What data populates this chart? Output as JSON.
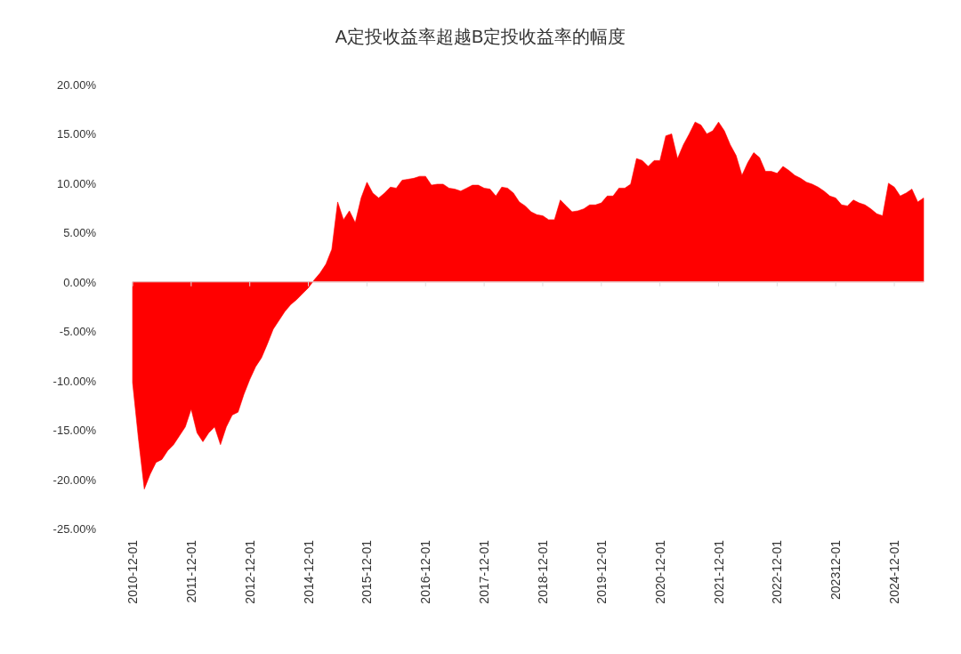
{
  "chart_data": {
    "type": "area",
    "title": "A定投收益率超越B定投收益率的幅度",
    "categories": [
      "2010-12-01",
      null,
      null,
      null,
      null,
      null,
      null,
      null,
      null,
      null,
      "2011-12-01",
      null,
      null,
      null,
      null,
      null,
      null,
      null,
      null,
      null,
      "2012-12-01",
      null,
      null,
      null,
      null,
      null,
      null,
      null,
      null,
      null,
      "2014-12-01",
      null,
      null,
      null,
      null,
      null,
      null,
      null,
      null,
      null,
      "2015-12-01",
      null,
      null,
      null,
      null,
      null,
      null,
      null,
      null,
      null,
      "2016-12-01",
      null,
      null,
      null,
      null,
      null,
      null,
      null,
      null,
      null,
      "2017-12-01",
      null,
      null,
      null,
      null,
      null,
      null,
      null,
      null,
      null,
      "2018-12-01",
      null,
      null,
      null,
      null,
      null,
      null,
      null,
      null,
      null,
      "2019-12-01",
      null,
      null,
      null,
      null,
      null,
      null,
      null,
      null,
      null,
      "2020-12-01",
      null,
      null,
      null,
      null,
      null,
      null,
      null,
      null,
      null,
      "2021-12-01",
      null,
      null,
      null,
      null,
      null,
      null,
      null,
      null,
      null,
      "2022-12-01",
      null,
      null,
      null,
      null,
      null,
      null,
      null,
      null,
      null,
      "202312-01",
      null,
      null,
      null,
      null,
      null,
      null,
      null,
      null,
      null,
      "2024-12-01",
      null,
      null,
      null,
      null,
      null
    ],
    "series": [
      {
        "color": "#ff0000",
        "values": [
          -10.2,
          -15.9,
          -21.0,
          -19.5,
          -18.3,
          -18.0,
          -17.1,
          -16.5,
          -15.6,
          -14.7,
          -12.9,
          -15.3,
          -16.2,
          -15.3,
          -14.7,
          -16.5,
          -14.7,
          -13.5,
          -13.2,
          -11.4,
          -9.9,
          -8.6,
          -7.7,
          -6.3,
          -4.8,
          -3.9,
          -3.0,
          -2.3,
          -1.8,
          -1.2,
          -0.6,
          0.2,
          0.9,
          1.8,
          3.3,
          8.1,
          6.3,
          7.2,
          6.0,
          8.5,
          10.1,
          9.0,
          8.5,
          9.0,
          9.6,
          9.5,
          10.3,
          10.4,
          10.5,
          10.7,
          10.7,
          9.8,
          9.9,
          9.9,
          9.5,
          9.4,
          9.2,
          9.5,
          9.8,
          9.8,
          9.5,
          9.4,
          8.7,
          9.6,
          9.5,
          9.0,
          8.1,
          7.7,
          7.1,
          6.8,
          6.7,
          6.3,
          6.3,
          8.3,
          7.7,
          7.1,
          7.2,
          7.4,
          7.8,
          7.8,
          8.0,
          8.7,
          8.7,
          9.5,
          9.5,
          9.9,
          12.5,
          12.3,
          11.7,
          12.3,
          12.3,
          14.8,
          15.0,
          12.5,
          13.9,
          15.0,
          16.2,
          15.9,
          15.0,
          15.3,
          16.2,
          15.3,
          13.9,
          12.8,
          10.8,
          12.1,
          13.1,
          12.6,
          11.2,
          11.2,
          11.0,
          11.7,
          11.3,
          10.8,
          10.5,
          10.1,
          9.9,
          9.6,
          9.2,
          8.7,
          8.5,
          7.8,
          7.7,
          8.3,
          8.0,
          7.8,
          7.4,
          6.9,
          6.7,
          10.0,
          9.6,
          8.7,
          9.0,
          9.4,
          8.1,
          8.5
        ]
      }
    ],
    "ylim": [
      -25,
      20
    ],
    "yticks": [
      {
        "value": 20,
        "label": "20.00%"
      },
      {
        "value": 15,
        "label": "15.00%"
      },
      {
        "value": 10,
        "label": "10.00%"
      },
      {
        "value": 5,
        "label": "5.00%"
      },
      {
        "value": 0,
        "label": "0.00%"
      },
      {
        "value": -5,
        "label": "-5.00%"
      },
      {
        "value": -10,
        "label": "-10.00%"
      },
      {
        "value": -15,
        "label": "-15.00%"
      },
      {
        "value": -20,
        "label": "-20.00%"
      },
      {
        "value": -25,
        "label": "-25.00%"
      }
    ]
  }
}
